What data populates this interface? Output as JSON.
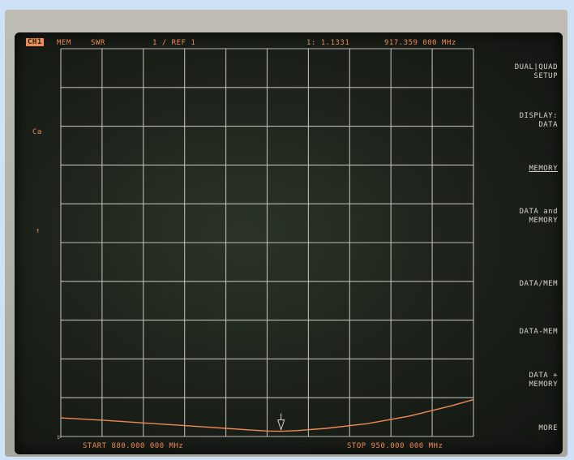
{
  "header": {
    "channel": "CH1",
    "mem": "MEM",
    "format": "SWR",
    "scale": "1 / REF 1",
    "marker_value": "1: 1.1331",
    "marker_freq": "917.359 000 MHz"
  },
  "left_annotations": {
    "cal": "Ca",
    "arrow": "↑"
  },
  "footer": {
    "start": "START 880.000 000 MHz",
    "stop": "STOP 950.000 000 MHz"
  },
  "softkeys": [
    {
      "label": "DUAL|QUAD SETUP",
      "lines": [
        "DUAL|QUAD",
        "SETUP"
      ]
    },
    {
      "label": "DISPLAY: DATA",
      "lines": [
        "DISPLAY:",
        "DATA"
      ]
    },
    {
      "label": "MEMORY",
      "lines": [
        "MEMORY"
      ]
    },
    {
      "label": "DATA and MEMORY",
      "lines": [
        "DATA and",
        "MEMORY"
      ]
    },
    {
      "label": "DATA/MEM",
      "lines": [
        "DATA/MEM"
      ]
    },
    {
      "label": "DATA-MEM",
      "lines": [
        "DATA-MEM"
      ]
    },
    {
      "label": "DATA + MEMORY",
      "lines": [
        "DATA +",
        "MEMORY"
      ]
    },
    {
      "label": "MORE",
      "lines": [
        "MORE"
      ]
    }
  ],
  "chart_data": {
    "type": "line",
    "ylabel": "SWR",
    "grid": true,
    "x": [
      880,
      887,
      894,
      901,
      908,
      912,
      915,
      917.359,
      920,
      925,
      932,
      939,
      946,
      950
    ],
    "series": [
      {
        "values": [
          1.48,
          1.42,
          1.35,
          1.28,
          1.21,
          1.17,
          1.14,
          1.1331,
          1.15,
          1.21,
          1.33,
          1.52,
          1.78,
          1.95
        ]
      }
    ],
    "marker": {
      "x": 917.359,
      "y": 1.1331
    },
    "xlim": [
      880,
      950
    ],
    "ylim": [
      1,
      11
    ]
  },
  "colors": {
    "trace": "#ee8a55",
    "grid": "#d4d4cc",
    "softkey": "#d8d4cc"
  }
}
